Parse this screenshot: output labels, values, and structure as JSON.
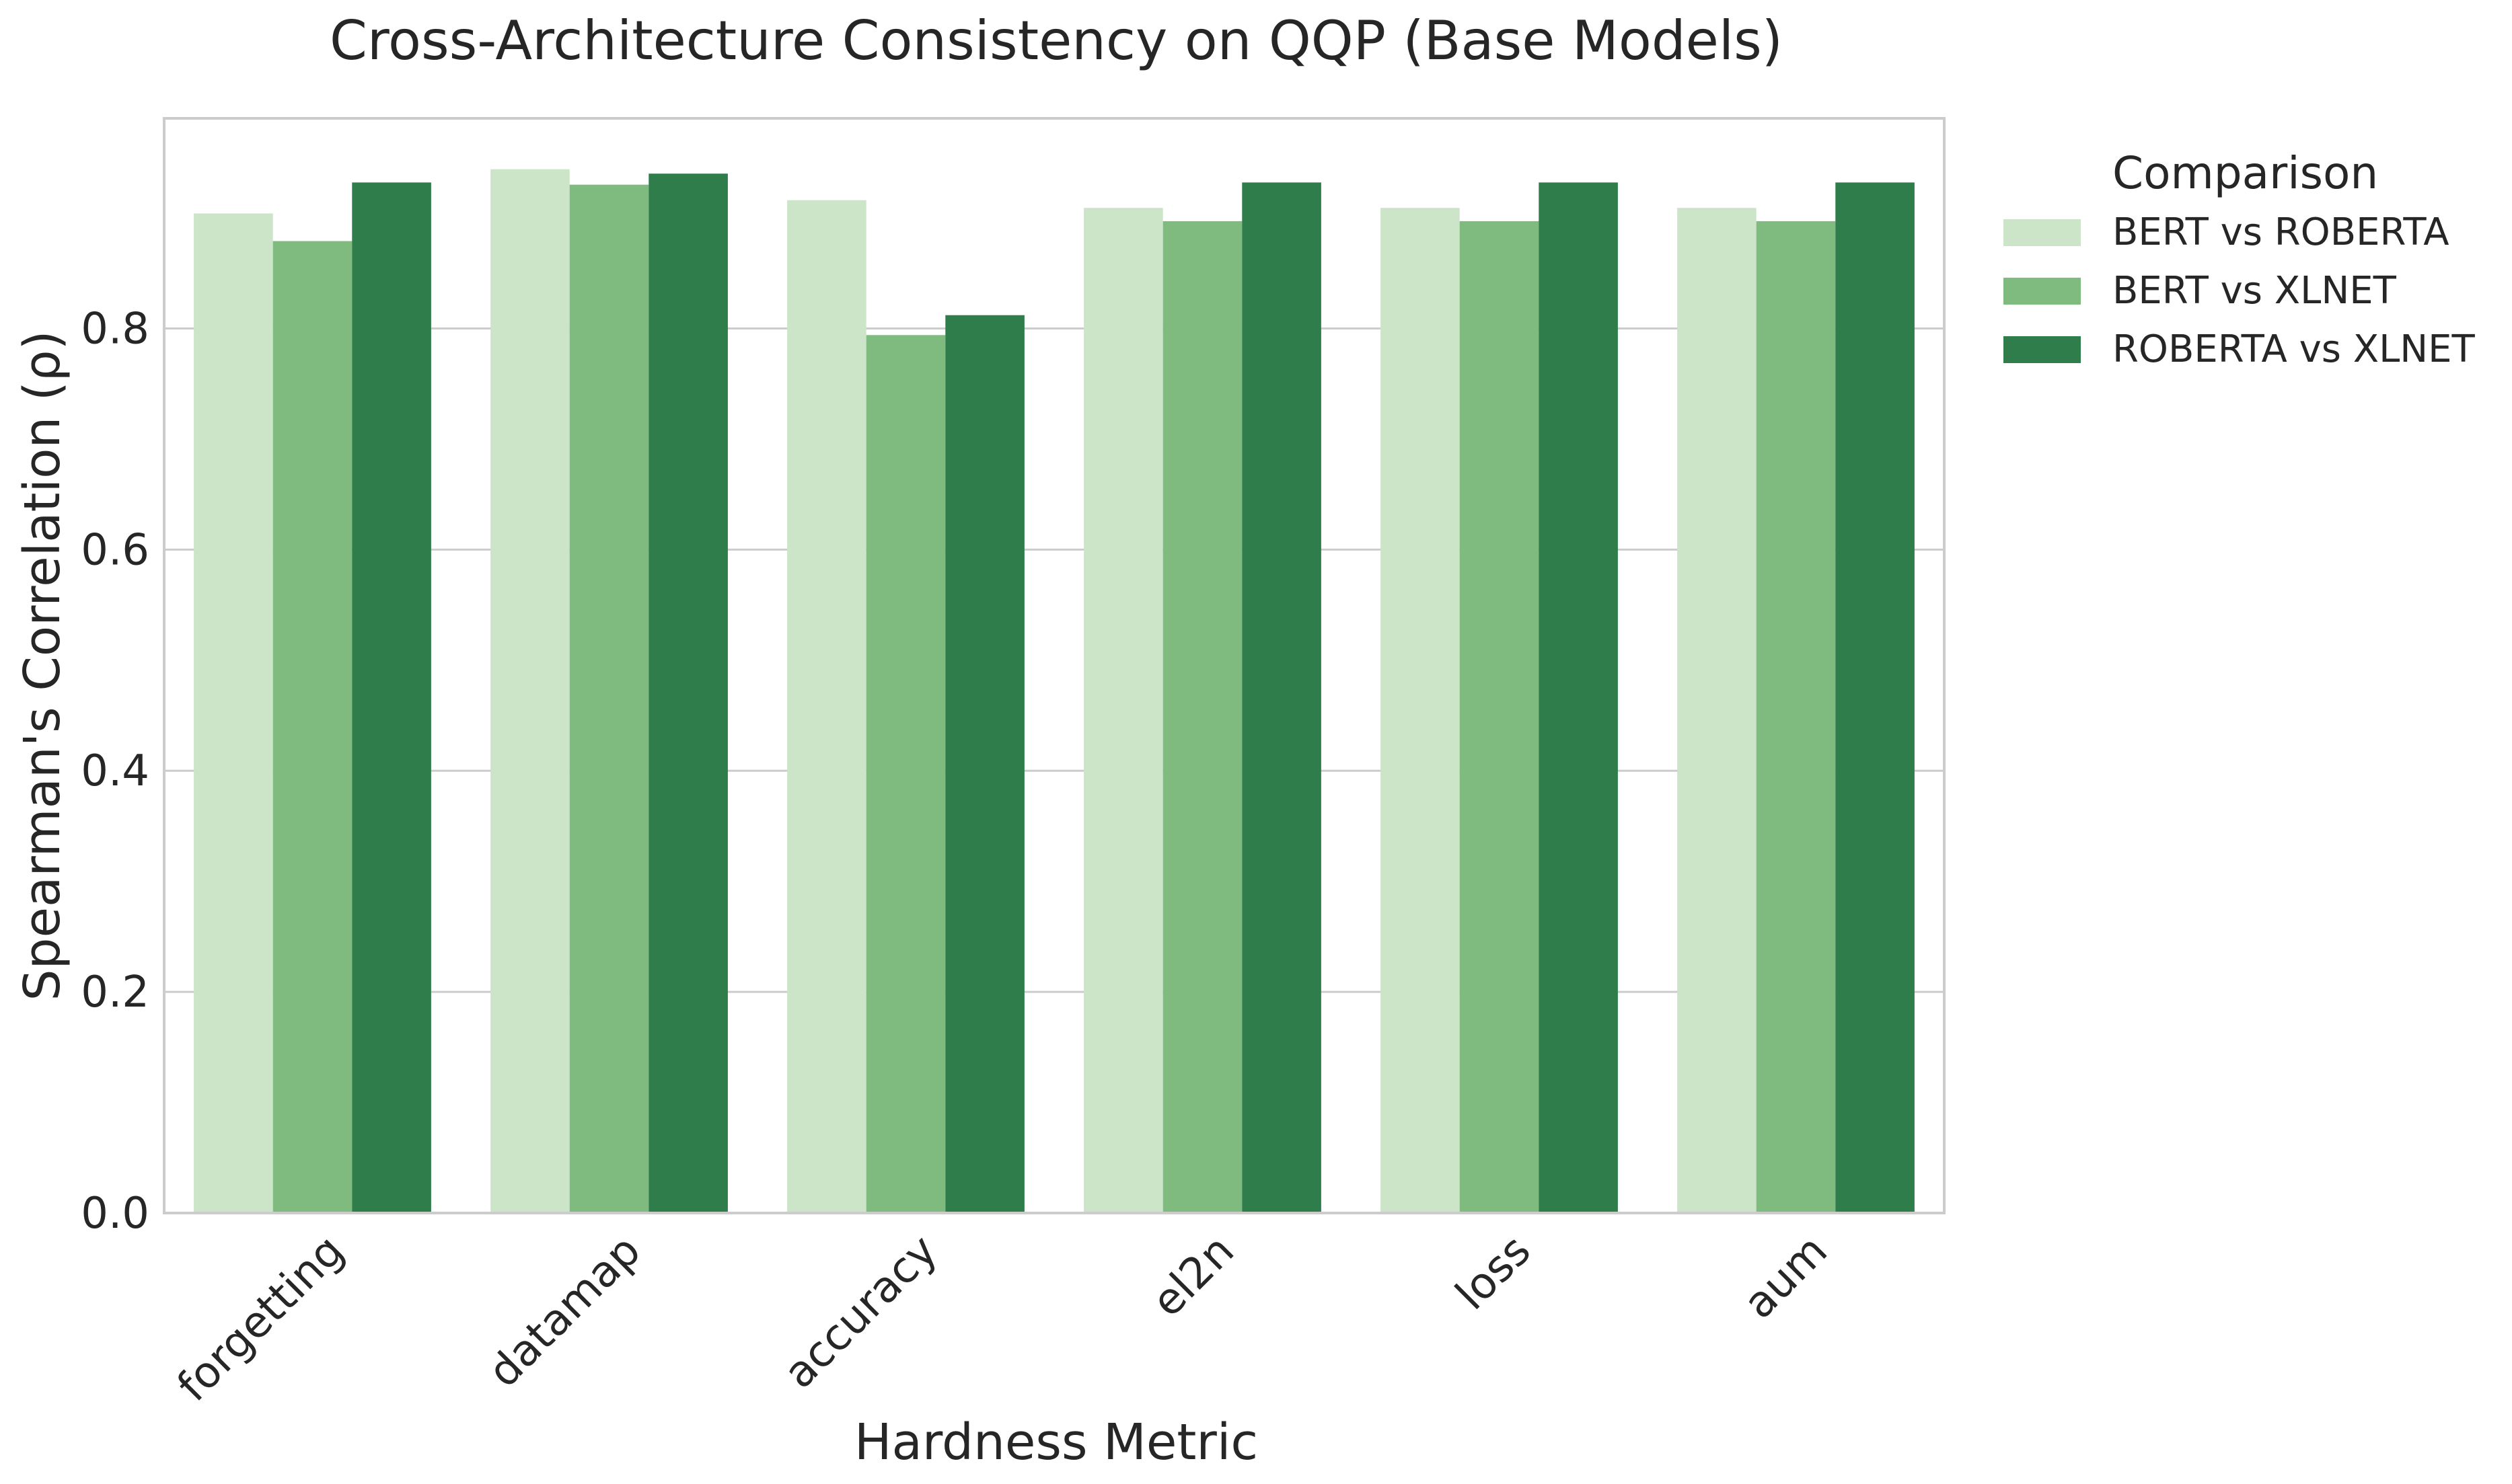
{
  "chart_data": {
    "type": "bar",
    "title": "Cross-Architecture Consistency on QQP (Base Models)",
    "xlabel": "Hardness Metric",
    "ylabel": "Spearman's Correlation (ρ)",
    "ylim": [
      0,
      0.99
    ],
    "yticks": [
      "0.0",
      "0.2",
      "0.4",
      "0.6",
      "0.8"
    ],
    "categories": [
      "forgetting",
      "datamap",
      "accuracy",
      "el2n",
      "loss",
      "aum"
    ],
    "legend_title": "Comparison",
    "legend_position": "outside-right",
    "grid": true,
    "series": [
      {
        "name": "BERT vs ROBERTA",
        "color": "#cce5c8",
        "values": [
          0.904,
          0.944,
          0.916,
          0.909,
          0.909,
          0.909
        ]
      },
      {
        "name": "BERT vs XLNET",
        "color": "#7fba7f",
        "values": [
          0.879,
          0.93,
          0.794,
          0.897,
          0.897,
          0.897
        ]
      },
      {
        "name": "ROBERTA vs XLNET",
        "color": "#2e7d4a",
        "values": [
          0.932,
          0.94,
          0.812,
          0.932,
          0.932,
          0.932
        ]
      }
    ]
  }
}
